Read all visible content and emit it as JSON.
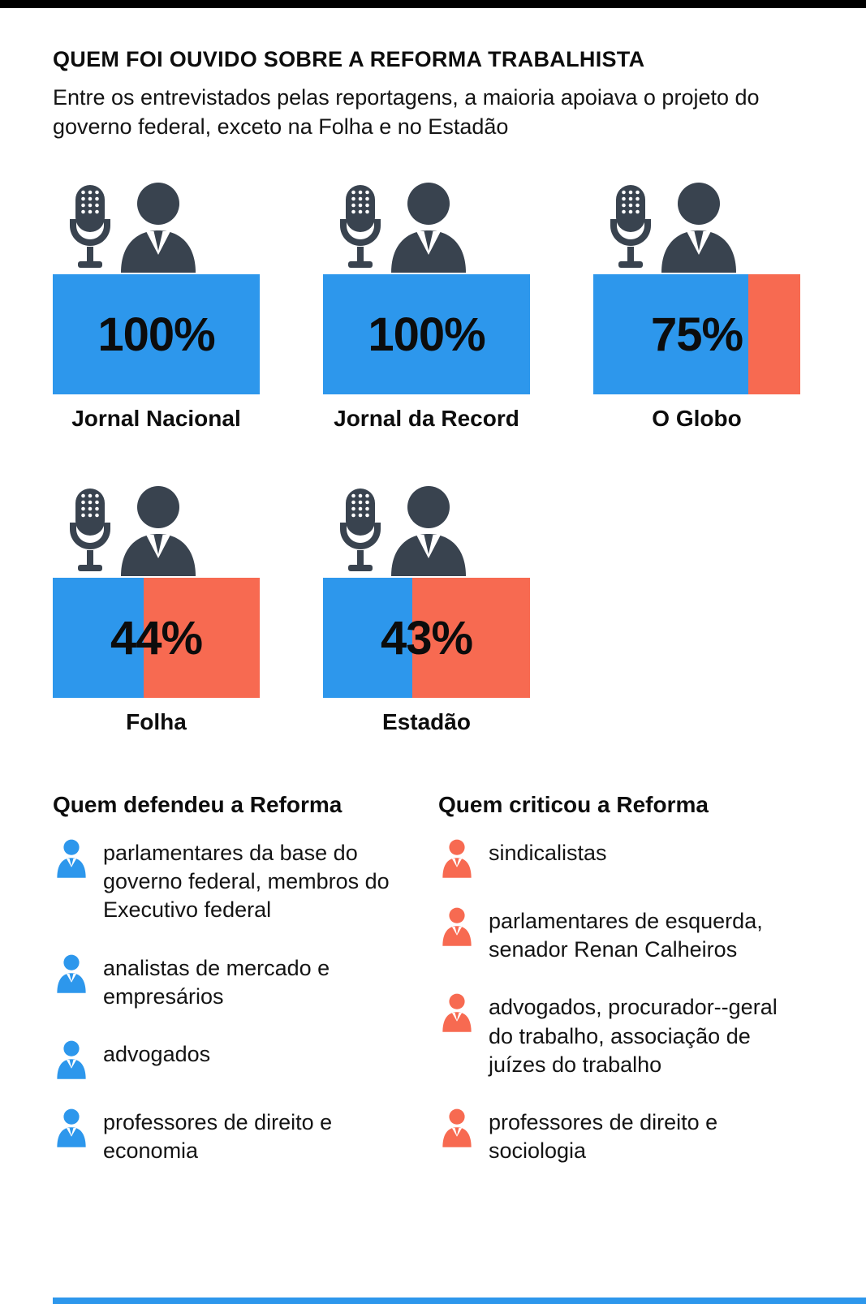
{
  "title": "QUEM FOI OUVIDO SOBRE A REFORMA TRABALHISTA",
  "subtitle": "Entre os entrevistados pelas reportagens, a maioria apoiava o projeto do governo federal, exceto na Folha e no Estadão",
  "colors": {
    "support_blue": "#2D97EC",
    "critic_orange": "#F76A51",
    "figure_dark": "#39434F"
  },
  "chart_data": {
    "type": "bar",
    "title": "QUEM FOI OUVIDO SOBRE A REFORMA TRABALHISTA",
    "subtitle": "Entre os entrevistados pelas reportagens, a maioria apoiava o projeto do governo federal, exceto na Folha e no Estadão",
    "categories": [
      "Jornal Nacional",
      "Jornal da Record",
      "O Globo",
      "Folha",
      "Estadão"
    ],
    "values": [
      100,
      100,
      75,
      44,
      43
    ],
    "value_labels": [
      "100%",
      "100%",
      "75%",
      "44%",
      "43%"
    ],
    "unit": "%",
    "ylim": [
      0,
      100
    ],
    "series_meaning": {
      "blue": "entrevistados que apoiavam a reforma",
      "orange": "entrevistados que criticavam a reforma"
    },
    "legend_position": "none",
    "grid": false
  },
  "bars": [
    {
      "label": "Jornal Nacional",
      "pct": 100,
      "pct_label": "100%"
    },
    {
      "label": "Jornal da Record",
      "pct": 100,
      "pct_label": "100%"
    },
    {
      "label": "O Globo",
      "pct": 75,
      "pct_label": "75%"
    },
    {
      "label": "Folha",
      "pct": 44,
      "pct_label": "44%"
    },
    {
      "label": "Estadão",
      "pct": 43,
      "pct_label": "43%"
    }
  ],
  "lists": {
    "defended": {
      "heading": "Quem defendeu a Reforma",
      "items": [
        "parlamentares da base do governo federal, membros do Executivo federal",
        "analistas de mercado e empresários",
        "advogados",
        "professores de direito e economia"
      ]
    },
    "criticized": {
      "heading": "Quem criticou a Reforma",
      "items": [
        "sindicalistas",
        "parlamentares de esquerda, senador Renan Calheiros",
        "advogados, procurador--geral do trabalho, associação de juízes do trabalho",
        "professores de direito e sociologia"
      ]
    }
  }
}
